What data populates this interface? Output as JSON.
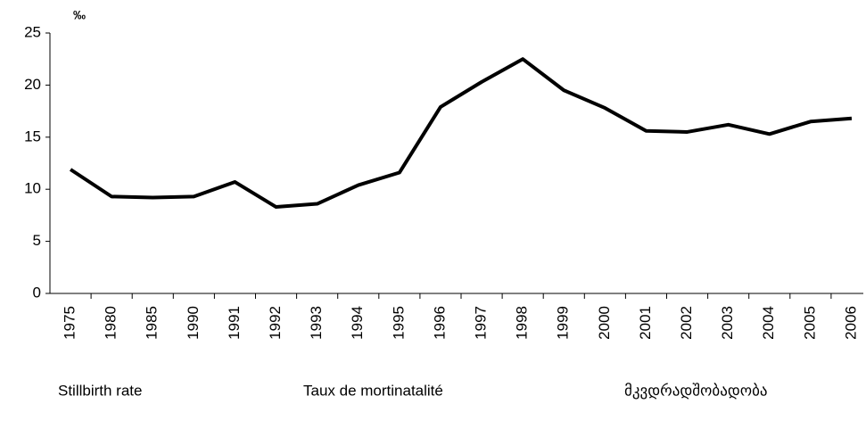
{
  "chart_data": {
    "type": "line",
    "y_unit": "‰",
    "categories": [
      "1975",
      "1980",
      "1985",
      "1990",
      "1991",
      "1992",
      "1993",
      "1994",
      "1995",
      "1996",
      "1997",
      "1998",
      "1999",
      "2000",
      "2001",
      "2002",
      "2003",
      "2004",
      "2005",
      "2006"
    ],
    "series": [
      {
        "color": "#000000",
        "values": [
          11.9,
          9.3,
          9.2,
          9.3,
          10.7,
          8.3,
          8.6,
          10.4,
          11.6,
          17.9,
          20.3,
          22.5,
          19.5,
          17.8,
          15.6,
          15.5,
          16.2,
          15.3,
          16.5,
          16.8
        ]
      }
    ],
    "ylim": [
      0,
      25
    ],
    "yticks": [
      0,
      5,
      10,
      15,
      20,
      25
    ],
    "grid": false,
    "captions": [
      "Stillbirth rate",
      "Taux de mortinatalité",
      "მკვდრადშობადობა"
    ]
  }
}
